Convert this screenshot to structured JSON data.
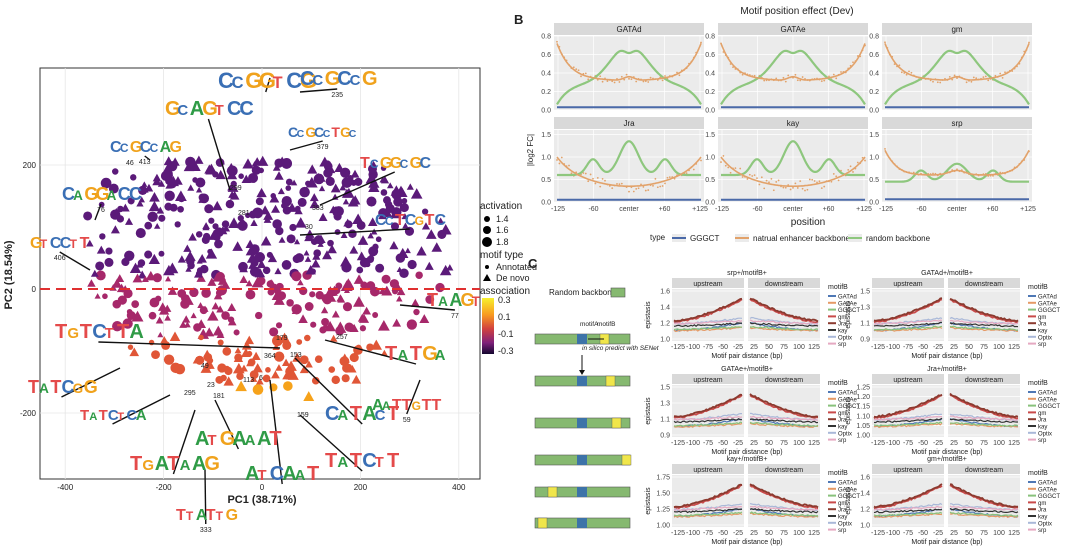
{
  "panel_a": {
    "xlabel": "PC1 (38.71%)",
    "ylabel": "PC2 (18.54%)",
    "x_ticks": [
      "-400",
      "-200",
      "0",
      "200",
      "400"
    ],
    "y_ticks": [
      "200",
      "0",
      "-200"
    ],
    "legend_activation_title": "activation",
    "legend_activation_values": [
      "1.4",
      "1.6",
      "1.8"
    ],
    "legend_motif_title": "motif type",
    "legend_motif_items": [
      "Annotated",
      "De novo"
    ],
    "legend_assoc_title": "association",
    "legend_assoc_values": [
      "0.3",
      "0.1",
      "-0.1",
      "-0.3"
    ],
    "motif_logos": [
      {
        "text": "CCGGTCG",
        "id": ""
      },
      {
        "text": "CCGCCG",
        "id": "235"
      },
      {
        "text": "GCAGTCC",
        "id": ""
      },
      {
        "text": "CCGCCTGC",
        "id": "379"
      },
      {
        "text": "CCGCCAG",
        "id": "413"
      },
      {
        "text": "TCGGCGC",
        "id": ""
      },
      {
        "text": "CAGGACC",
        "id": "76"
      },
      {
        "text": "CCTCGTC",
        "id": ""
      },
      {
        "text": "GTCCTT",
        "id": "406"
      },
      {
        "text": "TAAGT",
        "id": "77"
      },
      {
        "text": "TGTCTTA",
        "id": ""
      },
      {
        "text": "TATCGG",
        "id": ""
      },
      {
        "text": "TATCTCA",
        "id": ""
      },
      {
        "text": "TGATAAG",
        "id": ""
      },
      {
        "text": "ATGAAAT",
        "id": ""
      },
      {
        "text": "ATCAAT",
        "id": ""
      },
      {
        "text": "TTATTG",
        "id": "333"
      },
      {
        "text": "CATACT",
        "id": ""
      },
      {
        "text": "TATCTT",
        "id": ""
      },
      {
        "text": "AATTGTT",
        "id": "59"
      },
      {
        "text": "TATGA",
        "id": ""
      }
    ],
    "point_labels": [
      "299",
      "281",
      "383",
      "46",
      "30",
      "179",
      "257",
      "153",
      "364",
      "49",
      "113",
      "23",
      "181",
      "295",
      "6",
      "159"
    ]
  },
  "panel_b": {
    "label": "B",
    "title": "Motif position effect (Dev)",
    "facets": [
      "GATAd",
      "GATAe",
      "gm",
      "Jra",
      "kay",
      "srp"
    ],
    "ylabel": "|log2 FC|",
    "xlabel": "position",
    "x_ticks": [
      "-125",
      "-60",
      "center",
      "+60",
      "+125"
    ],
    "y_ticks": [
      "0.0",
      "0.2",
      "0.4",
      "0.6",
      "0.8"
    ],
    "y_ticks_row2": [
      "0.0",
      "0.5",
      "1.0",
      "1.5"
    ],
    "legend_title": "type",
    "legend_items": [
      {
        "label": "GGGCT",
        "color": "#4a69a8"
      },
      {
        "label": "natrual enhancer backbone",
        "color": "#e2a26a"
      },
      {
        "label": "random backbone",
        "color": "#8ec77e"
      }
    ]
  },
  "panel_c": {
    "label": "C",
    "backbone_label": "Random backbone",
    "motifA": "motifA",
    "motifB": "motifB",
    "predict_text": "in silico predict with SENet",
    "plots": [
      {
        "title": "srp+/motifB+",
        "yticks": [
          "1.6",
          "1.4",
          "1.2",
          "1.0"
        ]
      },
      {
        "title": "GATAd+/motifB+",
        "yticks": [
          "1.5",
          "1.3",
          "1.1",
          "0.9"
        ]
      },
      {
        "title": "GATAe+/motifB+",
        "yticks": [
          "1.5",
          "1.3",
          "1.1",
          "0.9"
        ]
      },
      {
        "title": "Jra+/motifB+",
        "yticks": [
          "1.25",
          "1.20",
          "1.15",
          "1.10",
          "1.05",
          "1.00"
        ]
      },
      {
        "title": "kay+/motifB+",
        "yticks": [
          "1.75",
          "1.50",
          "1.25",
          "1.00"
        ]
      },
      {
        "title": "gm+/motifB+",
        "yticks": [
          "1.6",
          "1.4",
          "1.2",
          "1.0"
        ]
      }
    ],
    "strip_up": "upstream",
    "strip_down": "downstream",
    "ylabel": "epistasis",
    "xlabel": "Motif pair distance (bp)",
    "x_ticks_up": [
      "-125",
      "-100",
      "-75",
      "-50",
      "-25"
    ],
    "x_ticks_down": [
      "25",
      "50",
      "75",
      "100",
      "125"
    ],
    "legend_title": "motifB",
    "legend_items": [
      {
        "label": "GATAd",
        "color": "#4f78b5"
      },
      {
        "label": "GATAe",
        "color": "#e59a66"
      },
      {
        "label": "GGGCT",
        "color": "#88c27c"
      },
      {
        "label": "gm",
        "color": "#c94a4a"
      },
      {
        "label": "Jra",
        "color": "#8b3a2f"
      },
      {
        "label": "kay",
        "color": "#333333"
      },
      {
        "label": "Optix",
        "color": "#a9b8d8"
      },
      {
        "label": "srp",
        "color": "#e5a9c2"
      }
    ]
  }
}
